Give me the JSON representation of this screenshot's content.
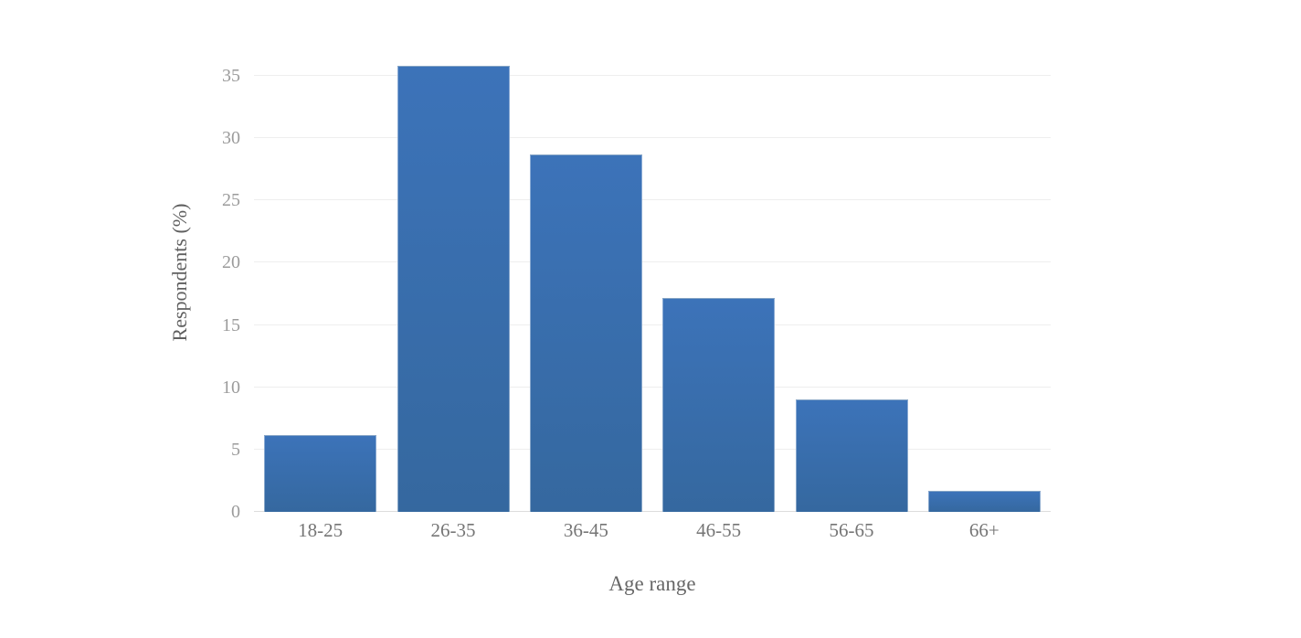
{
  "chart_data": {
    "type": "bar",
    "categories": [
      "18-25",
      "26-35",
      "36-45",
      "46-55",
      "56-65",
      "66+"
    ],
    "values": [
      6.2,
      35.8,
      28.7,
      17.2,
      9.0,
      1.7
    ],
    "title": "",
    "xlabel": "Age range",
    "ylabel": "Respondents (%)",
    "ylim": [
      0,
      37.6
    ],
    "yticks": [
      0,
      5,
      10,
      15,
      20,
      25,
      30,
      35
    ],
    "grid": true,
    "legend": false,
    "colors": {
      "bar_top": "#3c73b9",
      "bar_bottom": "#35689f",
      "gridline": "#eeeeee",
      "baseline": "#dcdcdc",
      "y_tick_label": "#9b9b9b",
      "x_tick_label": "#757575",
      "axis_title": "#5f5f5f",
      "background": "#ffffff"
    }
  }
}
